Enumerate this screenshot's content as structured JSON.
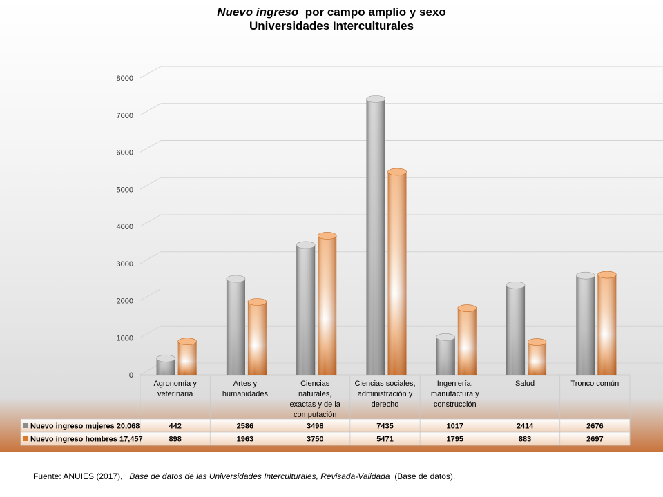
{
  "chart_data": {
    "type": "bar",
    "title_italic": "Nuevo ingreso",
    "title_rest": "por campo amplio y sexo",
    "subtitle": "Universidades Interculturales",
    "categories": [
      [
        "Agronomía y",
        "veterinaria"
      ],
      [
        "Artes y",
        "humanidades"
      ],
      [
        "Ciencias",
        "naturales,",
        "exactas y de la",
        "computación"
      ],
      [
        "Ciencias sociales,",
        "administración y",
        "derecho"
      ],
      [
        "Ingeniería,",
        "manufactura y",
        "construcción"
      ],
      [
        "Salud"
      ],
      [
        "Tronco común"
      ]
    ],
    "series": [
      {
        "name": "Nuevo ingreso mujeres 20,068",
        "color": "#8c8c8c",
        "values": [
          442,
          2586,
          3498,
          7435,
          1017,
          2414,
          2676
        ]
      },
      {
        "name": "Nuevo ingreso hombres 17,457",
        "color": "#d97a2b",
        "values": [
          898,
          1963,
          3750,
          5471,
          1795,
          883,
          2697
        ]
      }
    ],
    "ylim": [
      0,
      8000
    ],
    "yticks": [
      0,
      1000,
      2000,
      3000,
      4000,
      5000,
      6000,
      7000,
      8000
    ],
    "grid": true,
    "legend": "data-table"
  },
  "source": {
    "prefix": "Fuente: ANUIES (2017),",
    "italic": "Base de datos de las Universidades Interculturales, Revisada-Validada",
    "suffix": "(Base de datos)."
  }
}
